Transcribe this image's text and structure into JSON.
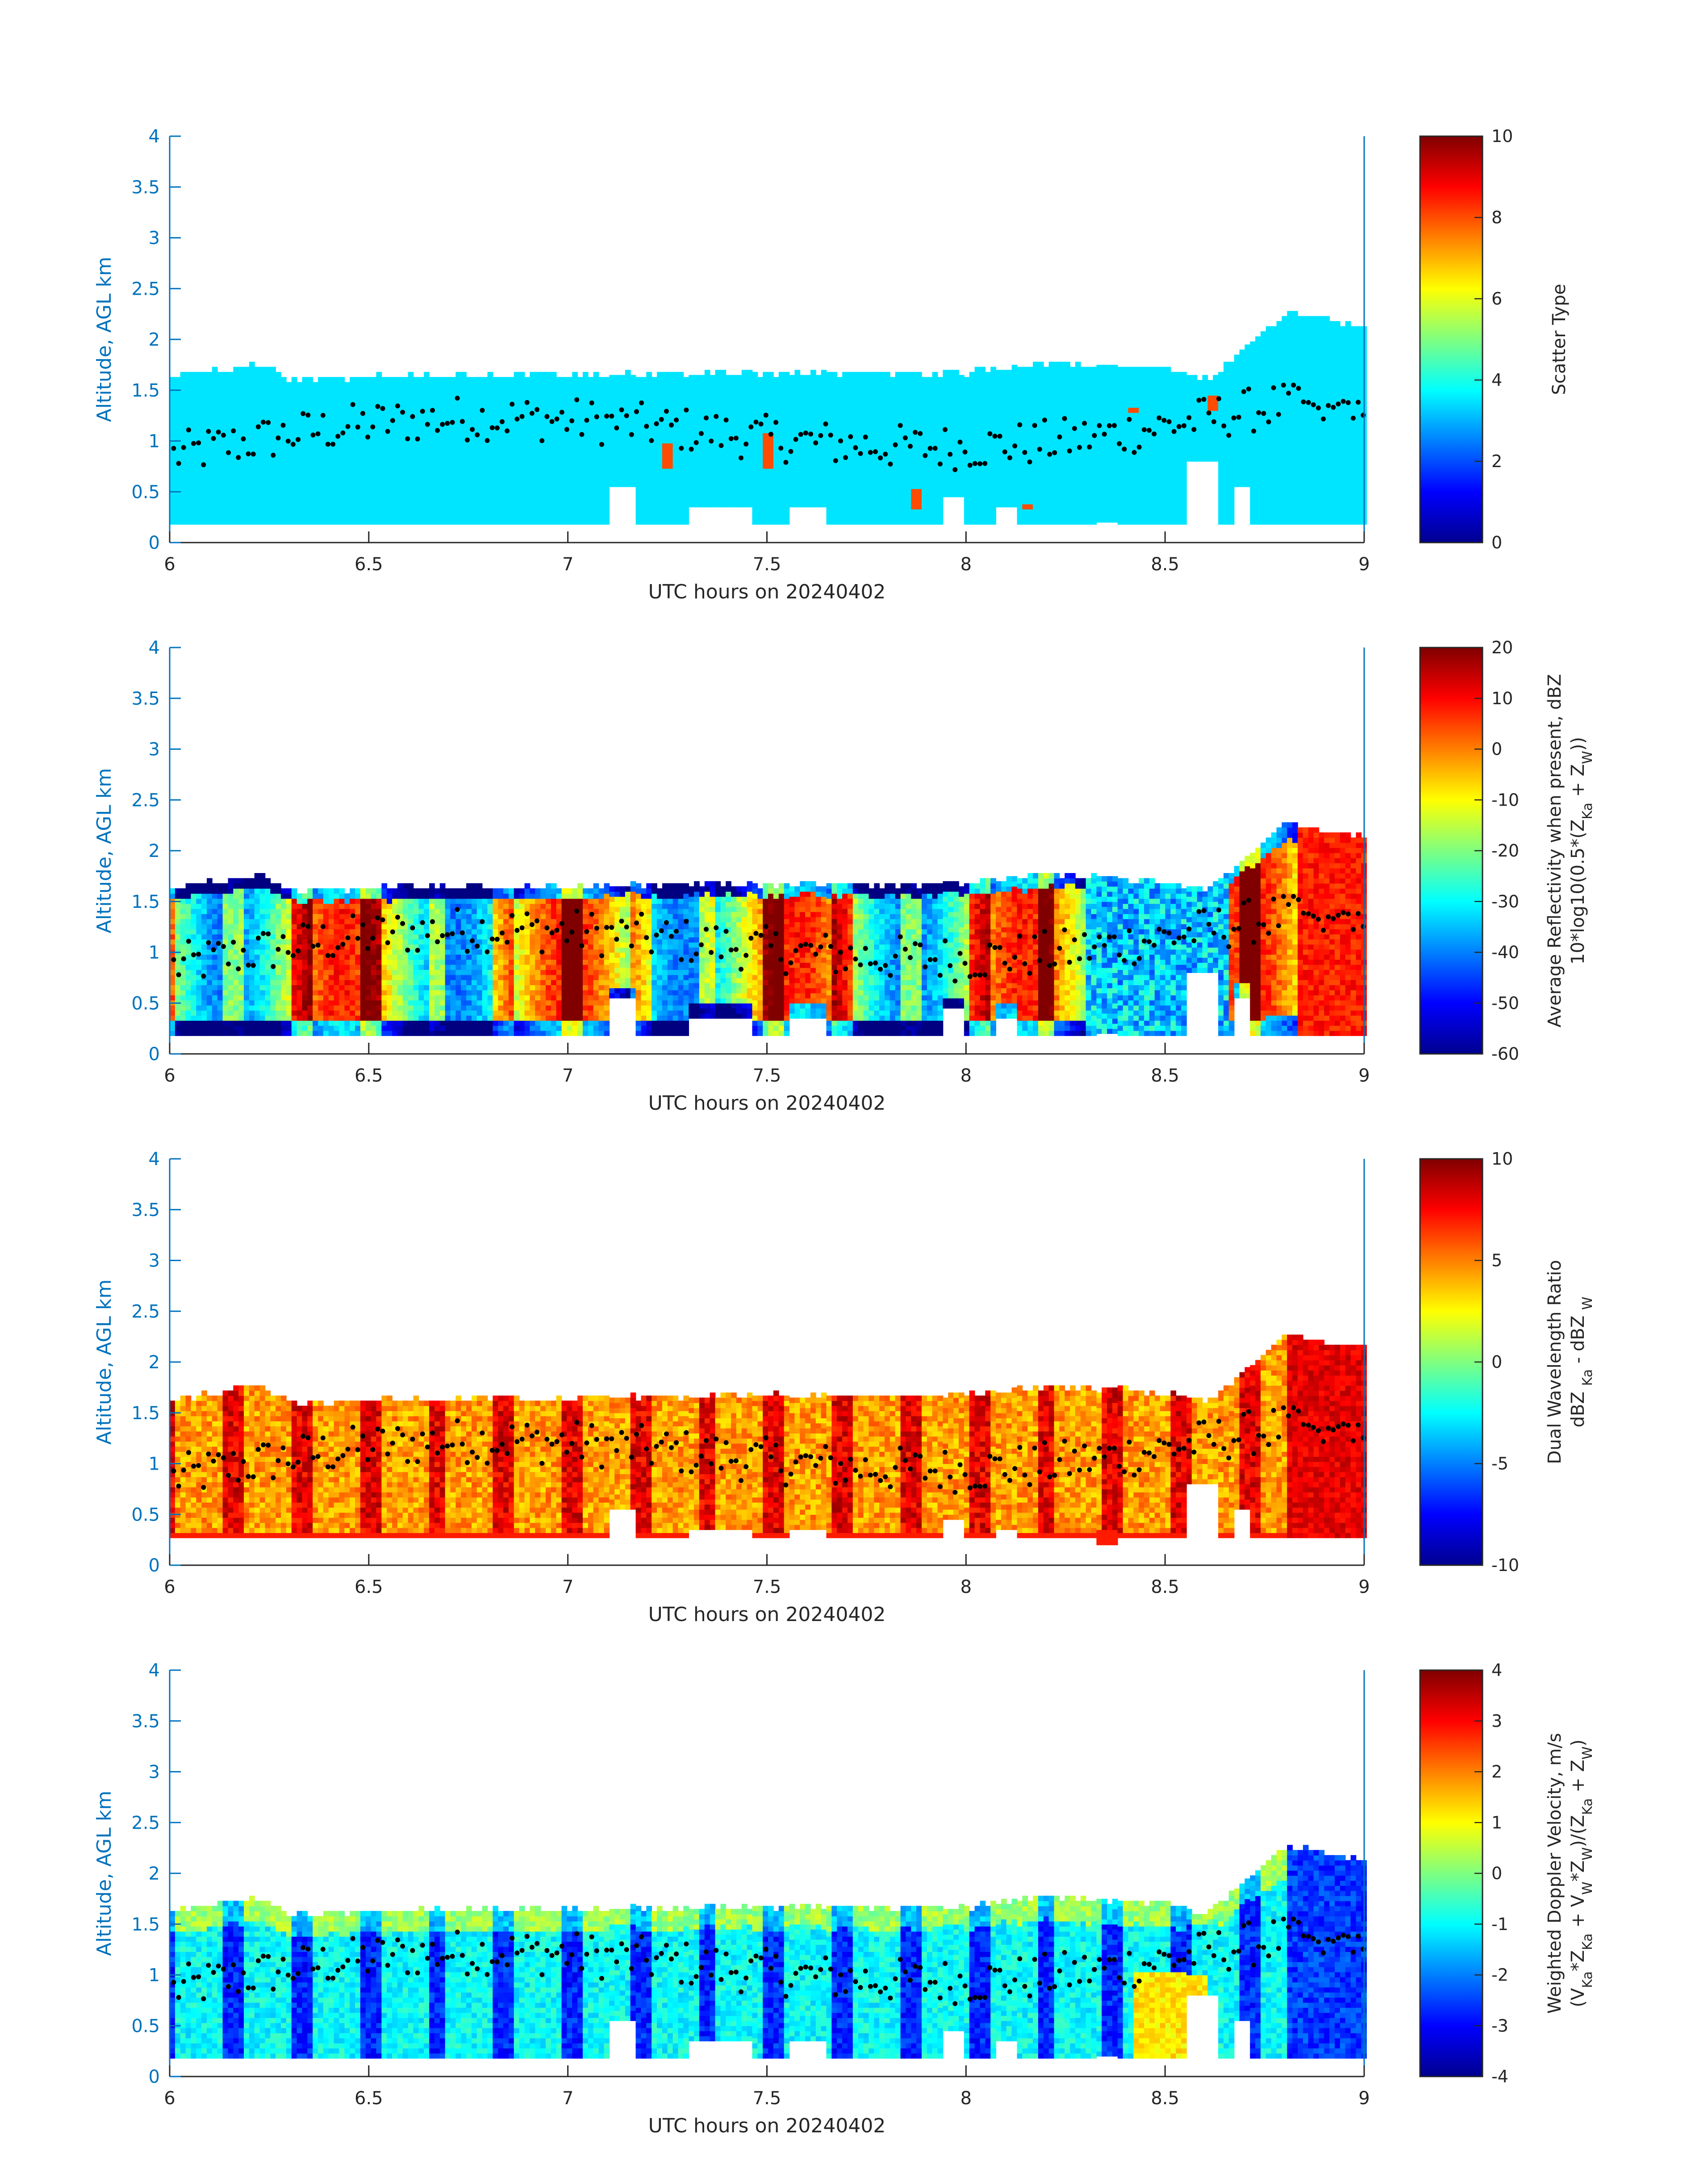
{
  "figure": {
    "date": "20240402",
    "xlabel": "UTC hours on 20240402",
    "ylabel": "Altitude, AGL km",
    "x_ticks": [
      "6",
      "6.5",
      "7",
      "7.5",
      "8",
      "8.5",
      "9"
    ],
    "y_ticks": [
      "0",
      "0.5",
      "1",
      "1.5",
      "2",
      "2.5",
      "3",
      "3.5",
      "4"
    ]
  },
  "chart_data": [
    {
      "type": "heatmap",
      "xlabel": "UTC hours on 20240402",
      "ylabel": "Altitude, AGL km",
      "xlim": [
        6,
        9
      ],
      "ylim": [
        0,
        4
      ],
      "colorbar_label_lines": [
        "Scatter Type"
      ],
      "clim": [
        0,
        10
      ],
      "colorbar_ticks": [
        "0",
        "2",
        "4",
        "6",
        "8",
        "10"
      ],
      "colormap": "jet",
      "dominant_value": 3.5,
      "cloud_base_km": 0.18,
      "cloud_top_km_by_hour": [
        [
          6.0,
          1.6
        ],
        [
          6.22,
          1.75
        ],
        [
          6.3,
          1.57
        ],
        [
          6.6,
          1.62
        ],
        [
          7.0,
          1.62
        ],
        [
          7.5,
          1.65
        ],
        [
          8.0,
          1.65
        ],
        [
          8.2,
          1.75
        ],
        [
          8.5,
          1.68
        ],
        [
          8.6,
          1.58
        ],
        [
          8.8,
          2.25
        ],
        [
          9.0,
          2.1
        ]
      ],
      "scattered_values": [
        {
          "x": 7.25,
          "y_range": [
            0.7,
            0.95
          ],
          "value": 8
        },
        {
          "x": 7.5,
          "y_range": [
            0.72,
            1.05
          ],
          "value": 8
        },
        {
          "x": 7.87,
          "y_range": [
            0.3,
            0.52
          ],
          "value": 8
        },
        {
          "x": 8.15,
          "y_range": [
            0.32,
            0.36
          ],
          "value": 8
        },
        {
          "x": 8.42,
          "y_range": [
            1.25,
            1.3
          ],
          "value": 8
        },
        {
          "x": 8.62,
          "y_range": [
            1.3,
            1.42
          ],
          "value": 8
        }
      ],
      "overlay_points_description": "black dots tracing an approximate boundary layer height"
    },
    {
      "type": "heatmap",
      "xlabel": "UTC hours on 20240402",
      "ylabel": "Altitude, AGL km",
      "xlim": [
        6,
        9
      ],
      "ylim": [
        0,
        4
      ],
      "colorbar_label_lines": [
        "Average Reflectivity when present, dBZ",
        "10*log10(0.5*(Z",
        "Ka",
        " + Z",
        "W",
        "))"
      ],
      "clim": [
        -60,
        20
      ],
      "colorbar_ticks": [
        "-60",
        "-50",
        "-40",
        "-30",
        "-20",
        "-10",
        "0",
        "10",
        "20"
      ],
      "colormap": "jet",
      "typical_values_dBZ": {
        "core": 5,
        "mid": -15,
        "edges": -45
      },
      "cloud_base_km": 0.18
    },
    {
      "type": "heatmap",
      "xlabel": "UTC hours on 20240402",
      "ylabel": "Altitude, AGL km",
      "xlim": [
        6,
        9
      ],
      "ylim": [
        0,
        4
      ],
      "colorbar_label_lines": [
        "Dual Wavelength Ratio",
        "dBZ ",
        "Ka",
        " - dBZ ",
        "W"
      ],
      "clim": [
        -10,
        10
      ],
      "colorbar_ticks": [
        "-10",
        "-5",
        "0",
        "5",
        "10"
      ],
      "colormap": "jet",
      "typical_values_dB": {
        "core": 5,
        "columns": 9,
        "edges": 3
      },
      "cloud_base_km": 0.27
    },
    {
      "type": "heatmap",
      "xlabel": "UTC hours on 20240402",
      "ylabel": "Altitude, AGL km",
      "xlim": [
        6,
        9
      ],
      "ylim": [
        0,
        4
      ],
      "colorbar_label_lines": [
        "Weighted Doppler Velocity, m/s",
        "(V",
        "Ka",
        "*Z",
        "Ka",
        " + V",
        "W",
        "*Z",
        "W",
        ")/(Z",
        "Ka",
        " + Z",
        "W",
        ")"
      ],
      "clim": [
        -4,
        4
      ],
      "colorbar_ticks": [
        "-4",
        "-3",
        "-2",
        "-1",
        "0",
        "1",
        "2",
        "3",
        "4"
      ],
      "colormap": "jet",
      "typical_values_ms": {
        "core": -1,
        "fall_streaks": -3,
        "top": 0.2
      },
      "cloud_base_km": 0.18
    }
  ]
}
